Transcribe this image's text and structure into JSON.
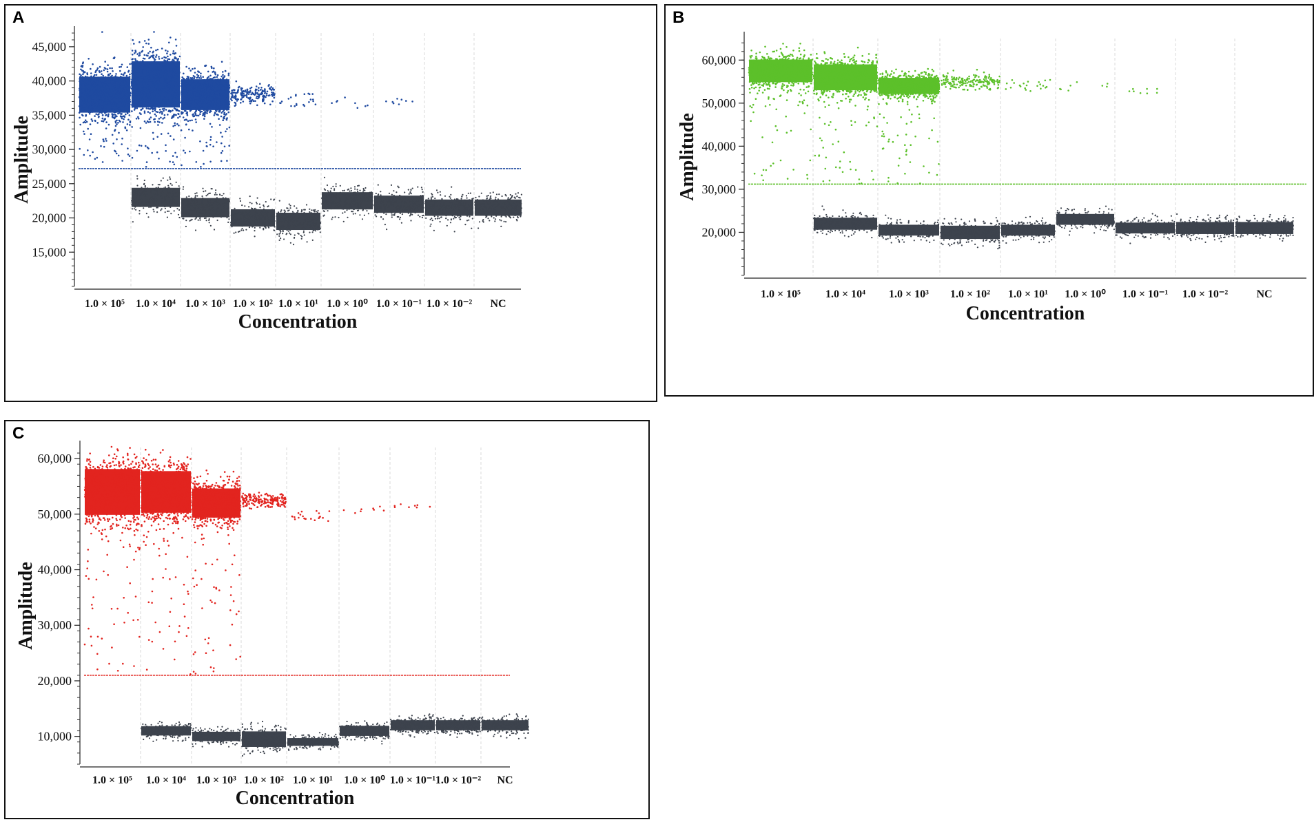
{
  "chart_data": [
    {
      "panel": "A",
      "type": "scatter",
      "xlabel": "Concentration",
      "ylabel": "Amplitude",
      "categories": [
        "1.0 × 10⁵",
        "1.0 × 10⁴",
        "1.0 × 10³",
        "1.0 × 10²",
        "1.0 × 10¹",
        "1.0 × 10⁰",
        "1.0 × 10⁻¹",
        "1.0 × 10⁻²",
        "NC"
      ],
      "ylim": [
        10000,
        47000
      ],
      "yticks": [
        15000,
        20000,
        25000,
        30000,
        35000,
        40000,
        45000
      ],
      "ytick_labels": [
        "15,000",
        "20,000",
        "25,000",
        "30,000",
        "35,000",
        "40,000",
        "45,000"
      ],
      "threshold": 27200,
      "positive_color": "#1f4aa0",
      "negative_color": "#3d434d",
      "threshold_color": "#1f4aa0",
      "series": [
        {
          "name": "positive",
          "cluster_mean": [
            38000,
            39500,
            38000,
            38000,
            37000,
            37000,
            37000,
            null,
            null
          ],
          "cluster_spread": [
            3500,
            4500,
            3000,
            1500,
            1500,
            1000,
            800,
            null,
            null
          ],
          "droplet_count": [
            "dense",
            "dense",
            "dense",
            "many",
            "sparse",
            "few",
            "few",
            "none",
            "none"
          ]
        },
        {
          "name": "negative",
          "cluster_mean": [
            null,
            23000,
            21500,
            20000,
            19500,
            22500,
            22000,
            21500,
            21500
          ],
          "cluster_spread": [
            null,
            2000,
            2000,
            1800,
            1800,
            1800,
            1800,
            1700,
            1700
          ]
        }
      ]
    },
    {
      "panel": "B",
      "type": "scatter",
      "xlabel": "Concentration",
      "ylabel": "Amplitude",
      "categories": [
        "1.0 × 10⁵",
        "1.0 × 10⁴",
        "1.0 × 10³",
        "1.0 × 10²",
        "1.0 × 10¹",
        "1.0 × 10⁰",
        "1.0 × 10⁻¹",
        "1.0 × 10⁻²",
        "NC"
      ],
      "ylim": [
        10000,
        65000
      ],
      "yticks": [
        20000,
        30000,
        40000,
        50000,
        60000
      ],
      "ytick_labels": [
        "20,000",
        "30,000",
        "40,000",
        "50,000",
        "60,000"
      ],
      "threshold": 31200,
      "positive_color": "#5cc02a",
      "negative_color": "#3d434d",
      "threshold_color": "#5cc02a",
      "series": [
        {
          "name": "positive",
          "cluster_mean": [
            57500,
            56000,
            54000,
            55000,
            54000,
            54000,
            53000,
            null,
            null
          ],
          "cluster_spread": [
            3500,
            4000,
            2500,
            2000,
            1500,
            1500,
            1000,
            null,
            null
          ]
        },
        {
          "name": "negative",
          "cluster_mean": [
            null,
            22000,
            20500,
            20000,
            20500,
            23000,
            21000,
            21000,
            21000
          ],
          "cluster_spread": [
            null,
            2000,
            1800,
            2200,
            1800,
            1800,
            1800,
            2000,
            2000
          ]
        }
      ]
    },
    {
      "panel": "C",
      "type": "scatter",
      "xlabel": "Concentration",
      "ylabel": "Amplitude",
      "categories": [
        "1.0 × 10⁵",
        "1.0 × 10⁴",
        "1.0 × 10³",
        "1.0 × 10²",
        "1.0 × 10¹",
        "1.0 × 10⁰",
        "1.0 × 10⁻¹",
        "1.0 × 10⁻²",
        "NC"
      ],
      "ylim": [
        5000,
        62000
      ],
      "yticks": [
        10000,
        20000,
        30000,
        40000,
        50000,
        60000
      ],
      "ytick_labels": [
        "10,000",
        "20,000",
        "30,000",
        "40,000",
        "50,000",
        "60,000"
      ],
      "threshold": 21000,
      "positive_color": "#e2241f",
      "negative_color": "#3d434d",
      "threshold_color": "#e2241f",
      "series": [
        {
          "name": "positive",
          "cluster_mean": [
            54000,
            54000,
            52000,
            52500,
            49500,
            50500,
            51500,
            null,
            null
          ],
          "cluster_spread": [
            5500,
            5000,
            3500,
            1500,
            1000,
            1000,
            500,
            null,
            null
          ]
        },
        {
          "name": "negative",
          "cluster_mean": [
            null,
            11000,
            10000,
            9500,
            9000,
            11000,
            12000,
            12000,
            12000
          ],
          "cluster_spread": [
            null,
            1200,
            1200,
            2000,
            1000,
            1300,
            1300,
            1300,
            1300
          ]
        }
      ]
    }
  ]
}
